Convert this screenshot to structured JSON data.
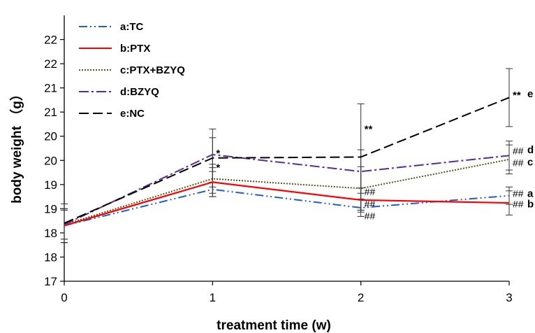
{
  "chart_data": {
    "type": "line",
    "title": "",
    "xlabel": "treatment time (w)",
    "ylabel": "body weight （g）",
    "x": [
      0,
      1,
      2,
      3
    ],
    "xticks": [
      "0",
      "1",
      "2",
      "3"
    ],
    "xlim": [
      0,
      3
    ],
    "ylim": [
      17,
      22.5
    ],
    "ytick_values": [
      17,
      17.5,
      18,
      18.5,
      19,
      19.5,
      20,
      20.5,
      21,
      21.5,
      22
    ],
    "yticks": [
      "17",
      "18",
      "18",
      "19",
      "19",
      "20",
      "20",
      "21",
      "21",
      "22",
      "22"
    ],
    "legend_position": "top-left",
    "grid": false,
    "series": [
      {
        "id": "a",
        "name": "a:TC",
        "color": "#1f5fcf",
        "dash": "12 4 2 4 2 4",
        "values": [
          18.15,
          18.9,
          18.52,
          18.77
        ],
        "errors": [
          0.35,
          0.15,
          0.18,
          0.18
        ]
      },
      {
        "id": "b",
        "name": "b:PTX",
        "color": "#ff0000",
        "dash": "",
        "values": [
          18.15,
          19.05,
          18.68,
          18.62
        ],
        "errors": [
          0.35,
          0.3,
          0.25,
          0.25
        ]
      },
      {
        "id": "c",
        "name": "c:PTX+BZYQ",
        "color": "#4d5a1e",
        "dash": "2 2",
        "values": [
          18.17,
          19.12,
          18.92,
          19.52
        ],
        "errors": [
          0.3,
          0.3,
          0.45,
          0.3
        ]
      },
      {
        "id": "d",
        "name": "d:BZYQ",
        "color": "#5b2a9a",
        "dash": "14 4 3 4",
        "values": [
          18.17,
          19.62,
          19.27,
          19.6
        ],
        "errors": [
          0.3,
          0.35,
          0.45,
          0.3
        ]
      },
      {
        "id": "e",
        "name": "e:NC",
        "color": "#000000",
        "dash": "14 6",
        "values": [
          18.2,
          19.55,
          19.57,
          20.8
        ],
        "errors": [
          0.4,
          0.6,
          1.1,
          0.6
        ]
      }
    ],
    "annotations": [
      {
        "text": "*",
        "x": 1,
        "y": 19.65,
        "style": "bold"
      },
      {
        "text": "*",
        "x": 1,
        "y": 19.35,
        "style": "bold"
      },
      {
        "text": "**",
        "x": 2,
        "y": 20.15,
        "style": "bold"
      },
      {
        "text": "##",
        "x": 2,
        "y": 18.85,
        "style": "normal"
      },
      {
        "text": "##",
        "x": 2,
        "y": 18.6,
        "style": "normal"
      },
      {
        "text": "##",
        "x": 2,
        "y": 18.35,
        "style": "normal"
      },
      {
        "text": "**",
        "x": 3,
        "y": 20.85,
        "style": "bold"
      },
      {
        "text": "##",
        "x": 3,
        "y": 19.7,
        "style": "normal"
      },
      {
        "text": "##",
        "x": 3,
        "y": 19.45,
        "style": "normal"
      },
      {
        "text": "##",
        "x": 3,
        "y": 18.82,
        "style": "normal"
      },
      {
        "text": "##",
        "x": 3,
        "y": 18.6,
        "style": "normal"
      }
    ],
    "end_labels": [
      {
        "text": "e",
        "y": 20.88
      },
      {
        "text": "d",
        "y": 19.72
      },
      {
        "text": "c",
        "y": 19.47
      },
      {
        "text": "a",
        "y": 18.82
      },
      {
        "text": "b",
        "y": 18.6
      }
    ]
  }
}
